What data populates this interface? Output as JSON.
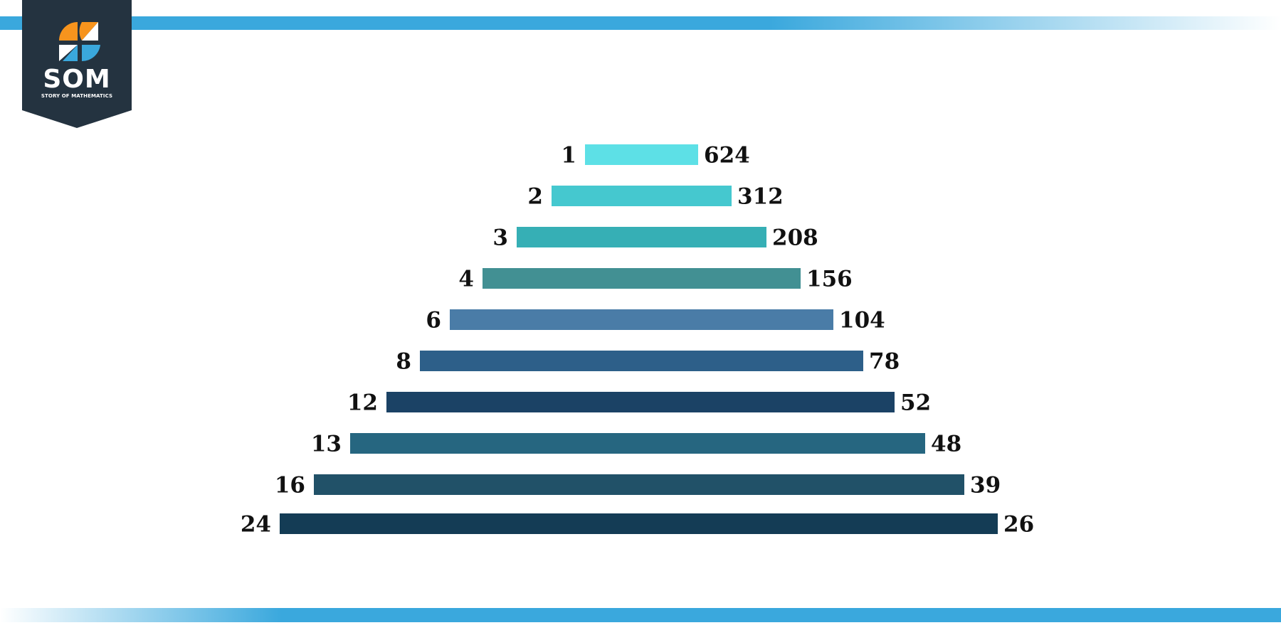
{
  "logo": {
    "title": "SOM",
    "subtitle": "STORY OF MATHEMATICS",
    "background_color": "#243340",
    "icon_colors": [
      "#f7941d",
      "#3aa8dd",
      "#ffffff"
    ],
    "icon": "som-logo-icon"
  },
  "colors": {
    "band": "#3aa8dd",
    "label": "#111111"
  },
  "factor_pairs": [
    {
      "left": "1",
      "right": "624",
      "color": "#5de0e6"
    },
    {
      "left": "2",
      "right": "312",
      "color": "#45c8cf"
    },
    {
      "left": "3",
      "right": "208",
      "color": "#36afb5"
    },
    {
      "left": "4",
      "right": "156",
      "color": "#429093"
    },
    {
      "left": "6",
      "right": "104",
      "color": "#4a7ca7"
    },
    {
      "left": "8",
      "right": "78",
      "color": "#2d5f89"
    },
    {
      "left": "12",
      "right": "52",
      "color": "#1b4265"
    },
    {
      "left": "13",
      "right": "48",
      "color": "#266680"
    },
    {
      "left": "16",
      "right": "39",
      "color": "#215168"
    },
    {
      "left": "24",
      "right": "26",
      "color": "#143c55"
    }
  ]
}
